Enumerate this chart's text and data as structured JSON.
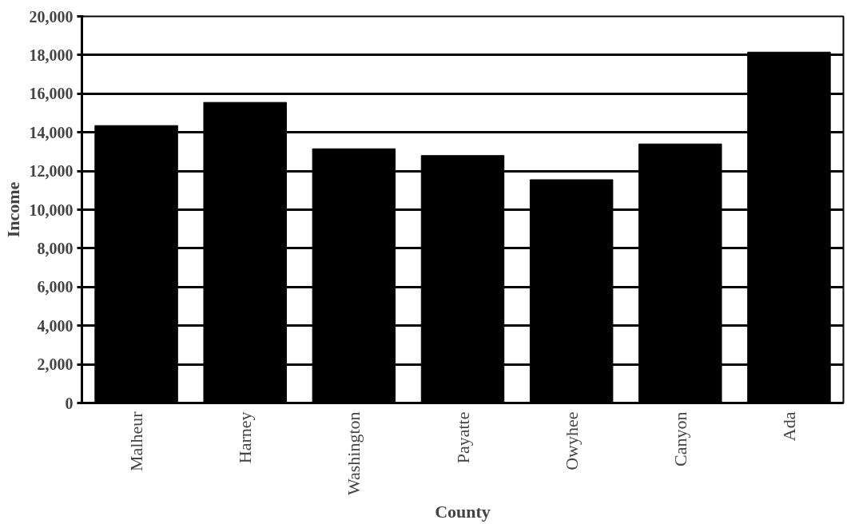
{
  "chart_data": {
    "type": "bar",
    "xlabel": "County",
    "ylabel": "Income",
    "categories": [
      "Malheur",
      "Harney",
      "Washington",
      "Payatte",
      "Owyhee",
      "Canyon",
      "Ada"
    ],
    "values": [
      14350,
      15550,
      13150,
      12800,
      11550,
      13400,
      18150
    ],
    "color": "#000000",
    "ylim": [
      0,
      20000
    ],
    "yticks": [
      {
        "value": 0,
        "label": "0"
      },
      {
        "value": 2000,
        "label": "2,000"
      },
      {
        "value": 4000,
        "label": "4,000"
      },
      {
        "value": 6000,
        "label": "6,000"
      },
      {
        "value": 8000,
        "label": "8,000"
      },
      {
        "value": 10000,
        "label": "10,000"
      },
      {
        "value": 12000,
        "label": "12,000"
      },
      {
        "value": 14000,
        "label": "14,000"
      },
      {
        "value": 16000,
        "label": "16,000"
      },
      {
        "value": 18000,
        "label": "18,000"
      },
      {
        "value": 20000,
        "label": "20,000"
      }
    ],
    "grid": "y"
  }
}
